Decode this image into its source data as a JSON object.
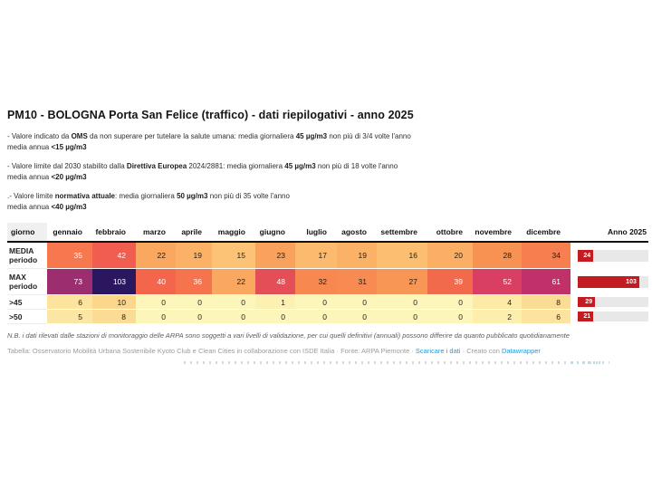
{
  "title": "PM10 - BOLOGNA Porta San Felice (traffico) - dati riepilogativi - anno 2025",
  "intro_notes": [
    {
      "line1": [
        {
          "text": "- Valore indicato da ",
          "bold": false
        },
        {
          "text": "OMS",
          "bold": true
        },
        {
          "text": " da non superare per tutelare la salute umana: media giornaliera ",
          "bold": false
        },
        {
          "text": "45 µg/m3",
          "bold": true
        },
        {
          "text": " non più di 3/4 volte l'anno",
          "bold": false
        }
      ],
      "line2": [
        {
          "text": "media annua ",
          "bold": false
        },
        {
          "text": "<15 µg/m3",
          "bold": true
        }
      ]
    },
    {
      "line1": [
        {
          "text": "- Valore limite dal 2030 stabilito dalla ",
          "bold": false
        },
        {
          "text": "Direttiva Europea",
          "bold": true
        },
        {
          "text": " 2024/2881: media giornaliera ",
          "bold": false
        },
        {
          "text": "45 µg/m3",
          "bold": true
        },
        {
          "text": " non più di 18 volte l'anno",
          "bold": false
        }
      ],
      "line2": [
        {
          "text": "media annua ",
          "bold": false
        },
        {
          "text": "<20 µg/m3",
          "bold": true
        }
      ]
    },
    {
      "line1": [
        {
          "text": ".- Valore limite ",
          "bold": false
        },
        {
          "text": "normativa attuale",
          "bold": true
        },
        {
          "text": ": media giornaliera ",
          "bold": false
        },
        {
          "text": "50 µg/m3",
          "bold": true
        },
        {
          "text": " non più di 35 volte l'anno",
          "bold": false
        }
      ],
      "line2": [
        {
          "text": "media annua ",
          "bold": false
        },
        {
          "text": "<40 µg/m3",
          "bold": true
        }
      ]
    }
  ],
  "table": {
    "columns": [
      "giorno",
      "gennaio",
      "febbraio",
      "marzo",
      "aprile",
      "maggio",
      "giugno",
      "luglio",
      "agosto",
      "settembre",
      "ottobre",
      "novembre",
      "dicembre",
      "Anno 2025"
    ],
    "bar": {
      "color": "#c41b22",
      "track_color": "#e8e8e8",
      "scale_max": 103
    },
    "rows": [
      {
        "label_lines": [
          "MEDIA",
          "periodo"
        ],
        "size": "big",
        "anno": 24,
        "cells": [
          {
            "v": "35",
            "bg": "#f7774e",
            "w": true
          },
          {
            "v": "42",
            "bg": "#f15d4e",
            "w": true
          },
          {
            "v": "22",
            "bg": "#faa75f"
          },
          {
            "v": "19",
            "bg": "#fbb267"
          },
          {
            "v": "15",
            "bg": "#fcc377"
          },
          {
            "v": "23",
            "bg": "#f9a25c"
          },
          {
            "v": "17",
            "bg": "#fbba6d"
          },
          {
            "v": "19",
            "bg": "#fbb267"
          },
          {
            "v": "16",
            "bg": "#fcbf72"
          },
          {
            "v": "20",
            "bg": "#fbaf64"
          },
          {
            "v": "28",
            "bg": "#f79252"
          },
          {
            "v": "34",
            "bg": "#f67e4f"
          }
        ]
      },
      {
        "label_lines": [
          "MAX",
          "periodo"
        ],
        "size": "big",
        "anno": 103,
        "cells": [
          {
            "v": "73",
            "bg": "#9c2d6e",
            "w": true
          },
          {
            "v": "103",
            "bg": "#2b1760",
            "w": true
          },
          {
            "v": "40",
            "bg": "#f3664c",
            "w": true
          },
          {
            "v": "36",
            "bg": "#f5734d",
            "w": true
          },
          {
            "v": "22",
            "bg": "#faa75f"
          },
          {
            "v": "48",
            "bg": "#e44f57",
            "w": true
          },
          {
            "v": "32",
            "bg": "#f68850"
          },
          {
            "v": "31",
            "bg": "#f78b51"
          },
          {
            "v": "27",
            "bg": "#f89755"
          },
          {
            "v": "39",
            "bg": "#f26a4c",
            "w": true
          },
          {
            "v": "52",
            "bg": "#d83f62",
            "w": true
          },
          {
            "v": "61",
            "bg": "#bf3168",
            "w": true
          }
        ]
      },
      {
        "label_lines": [
          ">45"
        ],
        "size": "small",
        "anno": 29,
        "cells": [
          {
            "v": "6",
            "bg": "#fce49f"
          },
          {
            "v": "10",
            "bg": "#fbd68b"
          },
          {
            "v": "0",
            "bg": "#fdf6bb"
          },
          {
            "v": "0",
            "bg": "#fdf6bb"
          },
          {
            "v": "0",
            "bg": "#fdf6bb"
          },
          {
            "v": "1",
            "bg": "#fdf1b1"
          },
          {
            "v": "0",
            "bg": "#fdf6bb"
          },
          {
            "v": "0",
            "bg": "#fdf6bb"
          },
          {
            "v": "0",
            "bg": "#fdf6bb"
          },
          {
            "v": "0",
            "bg": "#fdf6bb"
          },
          {
            "v": "4",
            "bg": "#fceaa6"
          },
          {
            "v": "8",
            "bg": "#fbdc94"
          }
        ]
      },
      {
        "label_lines": [
          ">50"
        ],
        "size": "small",
        "anno": 21,
        "cells": [
          {
            "v": "5",
            "bg": "#fce6a3"
          },
          {
            "v": "8",
            "bg": "#fbdc94"
          },
          {
            "v": "0",
            "bg": "#fdf6bb"
          },
          {
            "v": "0",
            "bg": "#fdf6bb"
          },
          {
            "v": "0",
            "bg": "#fdf6bb"
          },
          {
            "v": "0",
            "bg": "#fdf6bb"
          },
          {
            "v": "0",
            "bg": "#fdf6bb"
          },
          {
            "v": "0",
            "bg": "#fdf6bb"
          },
          {
            "v": "0",
            "bg": "#fdf6bb"
          },
          {
            "v": "0",
            "bg": "#fdf6bb"
          },
          {
            "v": "2",
            "bg": "#fcefad"
          },
          {
            "v": "6",
            "bg": "#fce49f"
          }
        ]
      }
    ]
  },
  "footnote": "N.B. i dati rilevati dalle stazioni di monitoraggio delle ARPA sono soggetti a vari livelli di validazione, per cui quelli definitivi (annuali) possono differire da quanto pubblicato quotidianamente",
  "attribution_segments": [
    {
      "text": "Tabella: Osservatorio Mobilità Urbana Sostenibile Kyoto Club e Clean Cities in collaborazione con ISDE Italia · Fonte: ARPA Piemonte · ",
      "link": false
    },
    {
      "text": "Scaricare i dati",
      "link": true
    },
    {
      "text": " · Creato con ",
      "link": false
    },
    {
      "text": "Datawrapper",
      "link": true
    }
  ],
  "chart_data": {
    "type": "heatmap",
    "title": "PM10 - BOLOGNA Porta San Felice (traffico) - dati riepilogativi - anno 2025",
    "categories": [
      "gennaio",
      "febbraio",
      "marzo",
      "aprile",
      "maggio",
      "giugno",
      "luglio",
      "agosto",
      "settembre",
      "ottobre",
      "novembre",
      "dicembre"
    ],
    "series": [
      {
        "name": "MEDIA periodo",
        "values": [
          35,
          42,
          22,
          19,
          15,
          23,
          17,
          19,
          16,
          20,
          28,
          34
        ],
        "anno_2025": 24
      },
      {
        "name": "MAX periodo",
        "values": [
          73,
          103,
          40,
          36,
          22,
          48,
          32,
          31,
          27,
          39,
          52,
          61
        ],
        "anno_2025": 103
      },
      {
        "name": ">45",
        "values": [
          6,
          10,
          0,
          0,
          0,
          1,
          0,
          0,
          0,
          0,
          4,
          8
        ],
        "anno_2025": 29
      },
      {
        "name": ">50",
        "values": [
          5,
          8,
          0,
          0,
          0,
          0,
          0,
          0,
          0,
          0,
          2,
          6
        ],
        "anno_2025": 21
      }
    ],
    "row_header": "giorno",
    "annual_column_label": "Anno 2025",
    "annual_bar_max": 103,
    "colormap": "pale-yellow to orange to red to purple to dark-indigo (low to high)",
    "legend_position": "none",
    "grid": false
  }
}
